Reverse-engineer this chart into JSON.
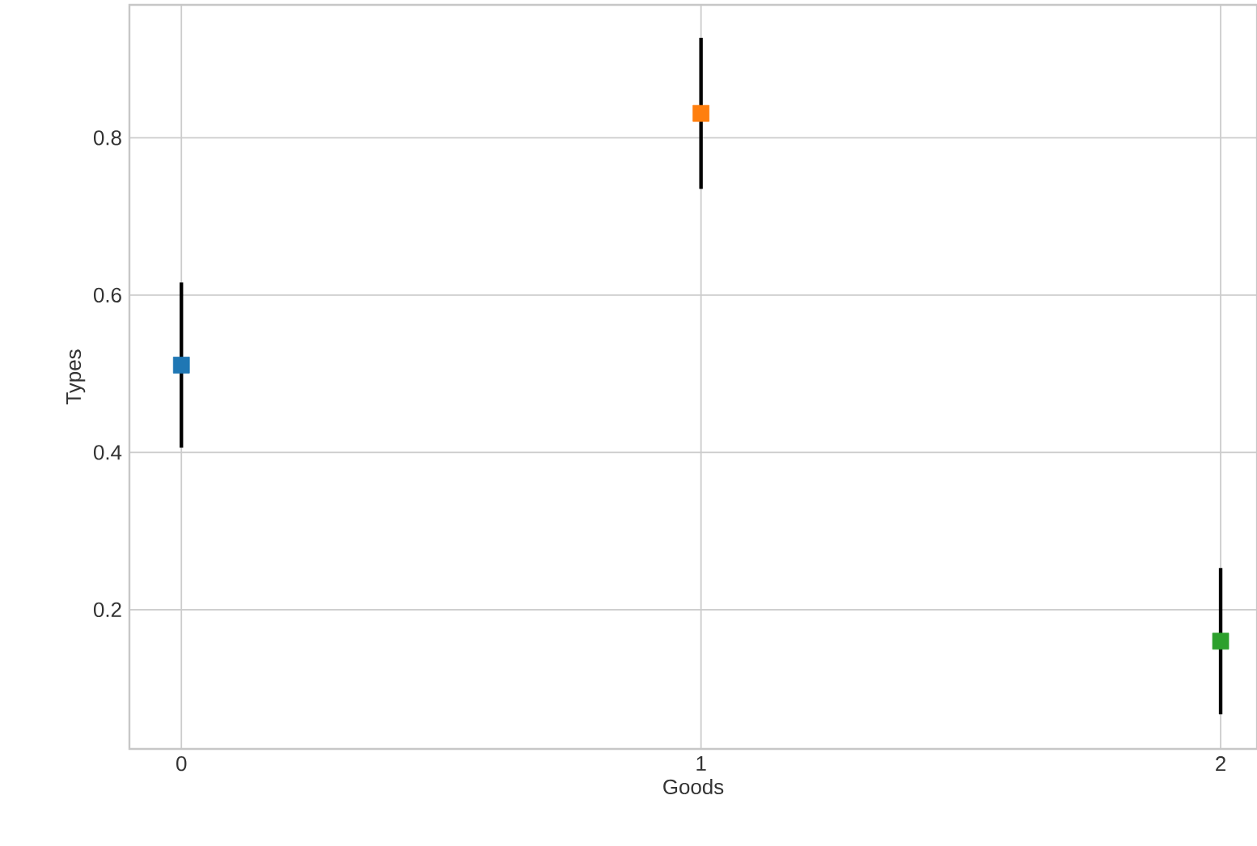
{
  "chart_data": {
    "type": "scatter",
    "xlabel": "Goods",
    "ylabel": "Types",
    "x": [
      0,
      1,
      2
    ],
    "values": [
      0.511,
      0.831,
      0.16
    ],
    "colors": [
      "#1f77b4",
      "#ff7f0e",
      "#2ca02c"
    ],
    "errors": [
      0.105,
      0.096,
      0.093
    ],
    "marker": "square",
    "grid": true,
    "xlim": [
      -0.1,
      2.07
    ],
    "ylim": [
      0.023,
      0.969
    ],
    "xticks": [
      0,
      1,
      2
    ],
    "yticks": [
      0.2,
      0.4,
      0.6,
      0.8
    ]
  }
}
